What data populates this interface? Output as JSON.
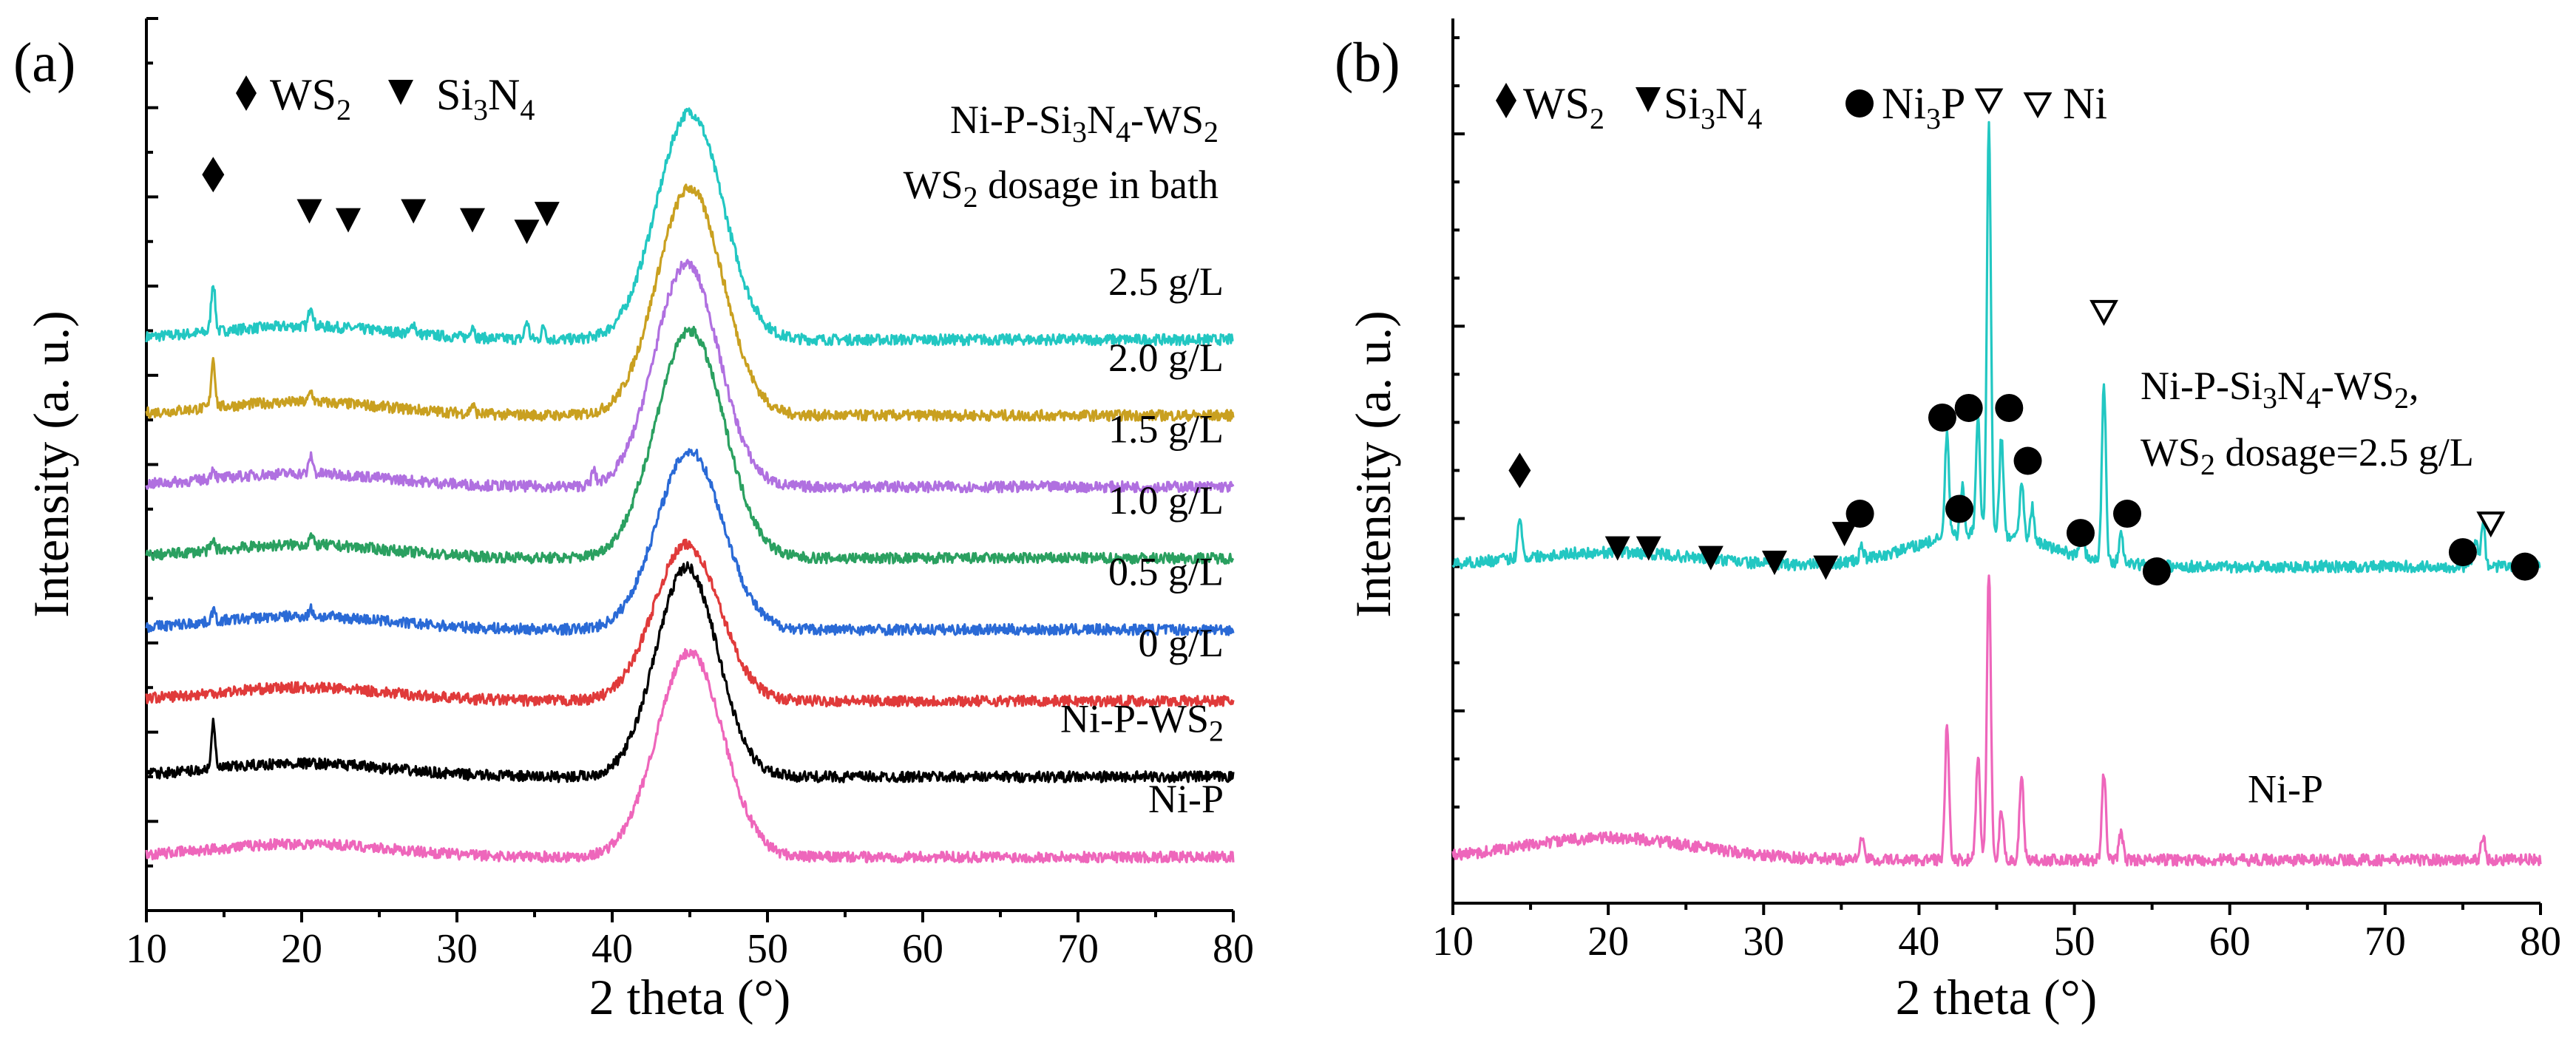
{
  "panels": [
    {
      "id": "a",
      "label": "(a)",
      "xlabel": "2 theta (°)",
      "ylabel": "Intensity (a. u.)",
      "xlim": [
        10,
        80
      ],
      "xticks": [
        10,
        20,
        30,
        40,
        50,
        60,
        70,
        80
      ],
      "legend": [
        {
          "symbol": "filled-diamond",
          "text": "WS",
          "sub": "2"
        },
        {
          "symbol": "filled-down-triangle",
          "text": "Si",
          "sub": "3",
          "text2": "N",
          "sub2": "4"
        }
      ],
      "title_line1": {
        "parts": [
          "Ni-P-Si",
          "3",
          "N",
          "4",
          "-WS",
          "2"
        ]
      },
      "title_line2": {
        "parts": [
          "WS",
          "2",
          " dosage in bath"
        ]
      }
    },
    {
      "id": "b",
      "label": "(b)",
      "xlabel": "2 theta (°)",
      "ylabel": "Intensity (a. u.)",
      "xlim": [
        10,
        80
      ],
      "xticks": [
        10,
        20,
        30,
        40,
        50,
        60,
        70,
        80
      ],
      "legend": [
        {
          "symbol": "filled-diamond",
          "text": "WS",
          "sub": "2"
        },
        {
          "symbol": "filled-down-triangle",
          "text": "Si",
          "sub": "3",
          "text2": "N",
          "sub2": "4"
        },
        {
          "symbol": "filled-circle",
          "text": "Ni",
          "sub": "3",
          "text2": "P"
        },
        {
          "symbol": "open-down-triangle",
          "text": "Ni"
        }
      ],
      "annotation_line1": {
        "parts": [
          "Ni-P-Si",
          "3",
          "N",
          "4",
          "-WS",
          "2",
          ","
        ]
      },
      "annotation_line2": {
        "parts": [
          "WS",
          "2",
          " dosage=2.5 g/L"
        ]
      }
    }
  ],
  "chart_data": [
    {
      "type": "line",
      "panel": "a",
      "title": "Ni-P-Si3N4-WS2, WS2 dosage in bath",
      "xlabel": "2 theta (°)",
      "ylabel": "Intensity (a. u.)",
      "xlim": [
        10,
        80
      ],
      "series": [
        {
          "name": "2.5 g/L",
          "color": "#22c7c2",
          "baseline": 6.4,
          "broad_peak": {
            "center": 45,
            "height": 2.55,
            "width": 3.0
          },
          "sharp_peaks": [
            [
              14.3,
              0.55
            ],
            [
              20.6,
              0.25
            ],
            [
              27.2,
              0.12
            ],
            [
              31.0,
              0.15
            ],
            [
              34.5,
              0.2
            ],
            [
              35.6,
              0.15
            ]
          ]
        },
        {
          "name": "2.0 g/L",
          "color": "#c9a020",
          "baseline": 5.55,
          "broad_peak": {
            "center": 45,
            "height": 2.55,
            "width": 3.0
          },
          "sharp_peaks": [
            [
              14.3,
              0.55
            ],
            [
              20.6,
              0.12
            ],
            [
              31.0,
              0.1
            ]
          ]
        },
        {
          "name": "1.5 g/L",
          "color": "#b070e0",
          "baseline": 4.75,
          "broad_peak": {
            "center": 44.8,
            "height": 2.5,
            "width": 2.9
          },
          "sharp_peaks": [
            [
              14.3,
              0.12
            ],
            [
              20.6,
              0.2
            ],
            [
              38.8,
              0.15
            ]
          ]
        },
        {
          "name": "1.0 g/L",
          "color": "#2aa060",
          "baseline": 3.95,
          "broad_peak": {
            "center": 45,
            "height": 2.55,
            "width": 3.1
          },
          "sharp_peaks": [
            [
              14.3,
              0.1
            ],
            [
              20.6,
              0.1
            ]
          ]
        },
        {
          "name": "0.5 g/L",
          "color": "#2a6ad6",
          "baseline": 3.15,
          "broad_peak": {
            "center": 45,
            "height": 2.0,
            "width": 3.0
          },
          "sharp_peaks": [
            [
              14.3,
              0.12
            ],
            [
              20.6,
              0.08
            ]
          ]
        },
        {
          "name": "0 g/L",
          "color": "#e03a3a",
          "baseline": 2.35,
          "broad_peak": {
            "center": 44.8,
            "height": 1.75,
            "width": 3.0
          },
          "sharp_peaks": []
        },
        {
          "name": "Ni-P-WS2",
          "color": "#000000",
          "baseline": 1.5,
          "broad_peak": {
            "center": 44.8,
            "height": 2.35,
            "width": 2.8
          },
          "sharp_peaks": [
            [
              14.3,
              0.5
            ]
          ]
        },
        {
          "name": "Ni-P",
          "color": "#ee66bb",
          "baseline": 0.6,
          "broad_peak": {
            "center": 45,
            "height": 2.3,
            "width": 3.0
          },
          "sharp_peaks": []
        }
      ],
      "markers": [
        {
          "phase": "WS2",
          "symbol": "filled-diamond",
          "x": 14.3,
          "y": 8.25
        },
        {
          "phase": "Si3N4",
          "symbol": "filled-down-triangle",
          "x": 20.5,
          "y": 7.85
        },
        {
          "phase": "Si3N4",
          "symbol": "filled-down-triangle",
          "x": 23.0,
          "y": 7.75
        },
        {
          "phase": "Si3N4",
          "symbol": "filled-down-triangle",
          "x": 27.2,
          "y": 7.85
        },
        {
          "phase": "Si3N4",
          "symbol": "filled-down-triangle",
          "x": 31.0,
          "y": 7.75
        },
        {
          "phase": "Si3N4",
          "symbol": "filled-down-triangle",
          "x": 34.5,
          "y": 7.62
        },
        {
          "phase": "Si3N4",
          "symbol": "filled-down-triangle",
          "x": 35.8,
          "y": 7.82
        }
      ]
    },
    {
      "type": "line",
      "panel": "b",
      "title": "Ni-P-Si3N4-WS2, WS2 dosage=2.5 g/L",
      "xlabel": "2 theta (°)",
      "ylabel": "Intensity (a. u.)",
      "xlim": [
        10,
        80
      ],
      "series": [
        {
          "name": "Ni-P-Si3N4-WS2",
          "color": "#22c7c2",
          "baseline": 3.5,
          "broad_peak": {
            "center": 44,
            "height": 0.35,
            "width": 6
          },
          "sharp_peaks": [
            [
              14.3,
              0.45
            ],
            [
              20.6,
              0.1
            ],
            [
              36.3,
              0.15
            ],
            [
              41.8,
              1.1
            ],
            [
              42.8,
              0.5
            ],
            [
              43.8,
              1.2
            ],
            [
              44.5,
              4.3
            ],
            [
              45.3,
              1.0
            ],
            [
              46.6,
              0.6
            ],
            [
              47.3,
              0.35
            ],
            [
              50.5,
              0.25
            ],
            [
              51.9,
              1.85
            ],
            [
              53.0,
              0.3
            ],
            [
              75.8,
              0.3
            ],
            [
              76.3,
              0.5
            ]
          ]
        },
        {
          "name": "Ni-P",
          "color": "#ee66bb",
          "baseline": 0.45,
          "broad_peak": {
            "center": 20,
            "height": 0.08,
            "width": 8
          },
          "sharp_peaks": [
            [
              36.3,
              0.25
            ],
            [
              41.8,
              1.4
            ],
            [
              43.8,
              1.1
            ],
            [
              44.5,
              3.0
            ],
            [
              45.3,
              0.5
            ],
            [
              46.6,
              0.9
            ],
            [
              51.9,
              0.9
            ],
            [
              53.0,
              0.3
            ],
            [
              76.3,
              0.25
            ]
          ]
        }
      ],
      "markers": [
        {
          "phase": "WS2",
          "symbol": "filled-diamond",
          "x": 14.3,
          "y": 4.5
        },
        {
          "phase": "Si3N4",
          "symbol": "filled-down-triangle",
          "x": 20.6,
          "y": 3.7
        },
        {
          "phase": "Si3N4",
          "symbol": "filled-down-triangle",
          "x": 22.6,
          "y": 3.7
        },
        {
          "phase": "Si3N4",
          "symbol": "filled-down-triangle",
          "x": 26.6,
          "y": 3.6
        },
        {
          "phase": "Si3N4",
          "symbol": "filled-down-triangle",
          "x": 30.7,
          "y": 3.55
        },
        {
          "phase": "Si3N4",
          "symbol": "filled-down-triangle",
          "x": 34.0,
          "y": 3.5
        },
        {
          "phase": "Si3N4",
          "symbol": "filled-down-triangle",
          "x": 35.2,
          "y": 3.85
        },
        {
          "phase": "Ni3P",
          "symbol": "filled-circle",
          "x": 36.2,
          "y": 4.05
        },
        {
          "phase": "Ni3P",
          "symbol": "filled-circle",
          "x": 41.5,
          "y": 5.05
        },
        {
          "phase": "Ni3P",
          "symbol": "filled-circle",
          "x": 42.6,
          "y": 4.1
        },
        {
          "phase": "Ni3P",
          "symbol": "filled-circle",
          "x": 43.2,
          "y": 5.15
        },
        {
          "phase": "Ni3P",
          "symbol": "filled-circle",
          "x": 45.8,
          "y": 5.15
        },
        {
          "phase": "Ni3P",
          "symbol": "filled-circle",
          "x": 47.0,
          "y": 4.6
        },
        {
          "phase": "Ni3P",
          "symbol": "filled-circle",
          "x": 50.4,
          "y": 3.85
        },
        {
          "phase": "Ni3P",
          "symbol": "filled-circle",
          "x": 53.4,
          "y": 4.05
        },
        {
          "phase": "Ni3P",
          "symbol": "filled-circle",
          "x": 55.3,
          "y": 3.45
        },
        {
          "phase": "Ni3P",
          "symbol": "filled-circle",
          "x": 75.0,
          "y": 3.65
        },
        {
          "phase": "Ni3P",
          "symbol": "filled-circle",
          "x": 79.0,
          "y": 3.5
        },
        {
          "phase": "Ni",
          "symbol": "open-down-triangle",
          "x": 44.5,
          "y": 8.35
        },
        {
          "phase": "Ni",
          "symbol": "open-down-triangle",
          "x": 51.9,
          "y": 6.15
        },
        {
          "phase": "Ni",
          "symbol": "open-down-triangle",
          "x": 76.8,
          "y": 3.95
        }
      ]
    }
  ]
}
